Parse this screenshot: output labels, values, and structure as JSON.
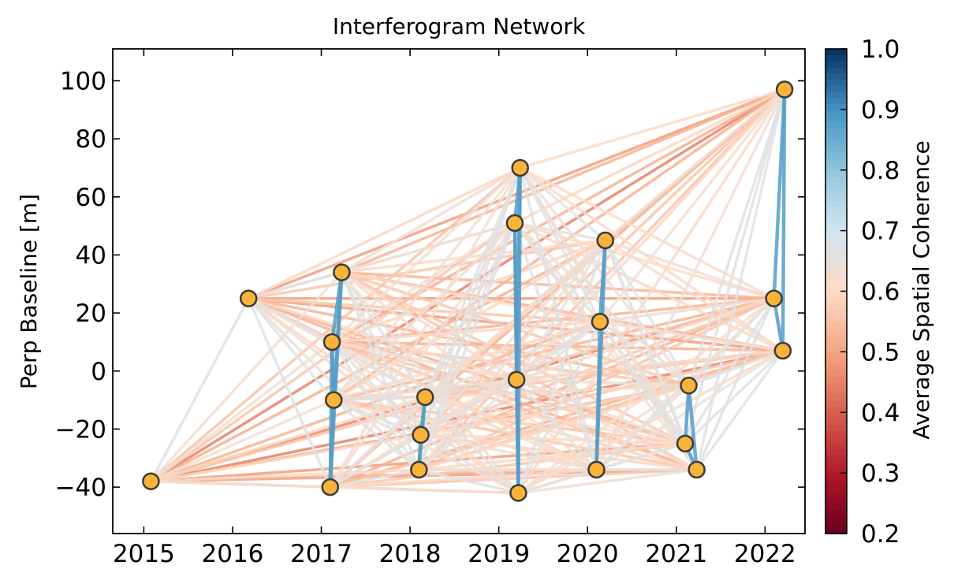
{
  "chart_data": {
    "type": "scatter",
    "title": "Interferogram Network",
    "xlabel": "",
    "ylabel": "Perp Baseline [m]",
    "colorbar_label": "Average Spatial Coherence",
    "xlim": [
      2014.65,
      2022.45
    ],
    "ylim": [
      -56,
      111
    ],
    "x_ticks": [
      2015,
      2016,
      2017,
      2018,
      2019,
      2020,
      2021,
      2022
    ],
    "y_ticks": [
      -40,
      -20,
      0,
      20,
      40,
      60,
      80,
      100
    ],
    "colorbar_range": [
      0.2,
      1.0
    ],
    "colorbar_ticks": [
      "0.2",
      "0.3",
      "0.4",
      "0.5",
      "0.6",
      "0.7",
      "0.8",
      "0.9",
      "1.0"
    ],
    "colormap": "RdBu",
    "marker_color": "#f8b338",
    "grid": false,
    "acquisitions": [
      {
        "date": 2015.08,
        "bperp": -38
      },
      {
        "date": 2016.18,
        "bperp": 25
      },
      {
        "date": 2017.1,
        "bperp": -40
      },
      {
        "date": 2017.12,
        "bperp": 10
      },
      {
        "date": 2017.14,
        "bperp": -10
      },
      {
        "date": 2017.23,
        "bperp": 34
      },
      {
        "date": 2018.1,
        "bperp": -34
      },
      {
        "date": 2018.12,
        "bperp": -22
      },
      {
        "date": 2018.17,
        "bperp": -9
      },
      {
        "date": 2019.18,
        "bperp": 51
      },
      {
        "date": 2019.2,
        "bperp": -3
      },
      {
        "date": 2019.22,
        "bperp": -42
      },
      {
        "date": 2019.24,
        "bperp": 70
      },
      {
        "date": 2020.1,
        "bperp": -34
      },
      {
        "date": 2020.14,
        "bperp": 17
      },
      {
        "date": 2020.2,
        "bperp": 45
      },
      {
        "date": 2021.1,
        "bperp": -25
      },
      {
        "date": 2021.14,
        "bperp": -5
      },
      {
        "date": 2021.23,
        "bperp": -34
      },
      {
        "date": 2022.1,
        "bperp": 25
      },
      {
        "date": 2022.2,
        "bperp": 7
      },
      {
        "date": 2022.22,
        "bperp": 97
      }
    ]
  }
}
